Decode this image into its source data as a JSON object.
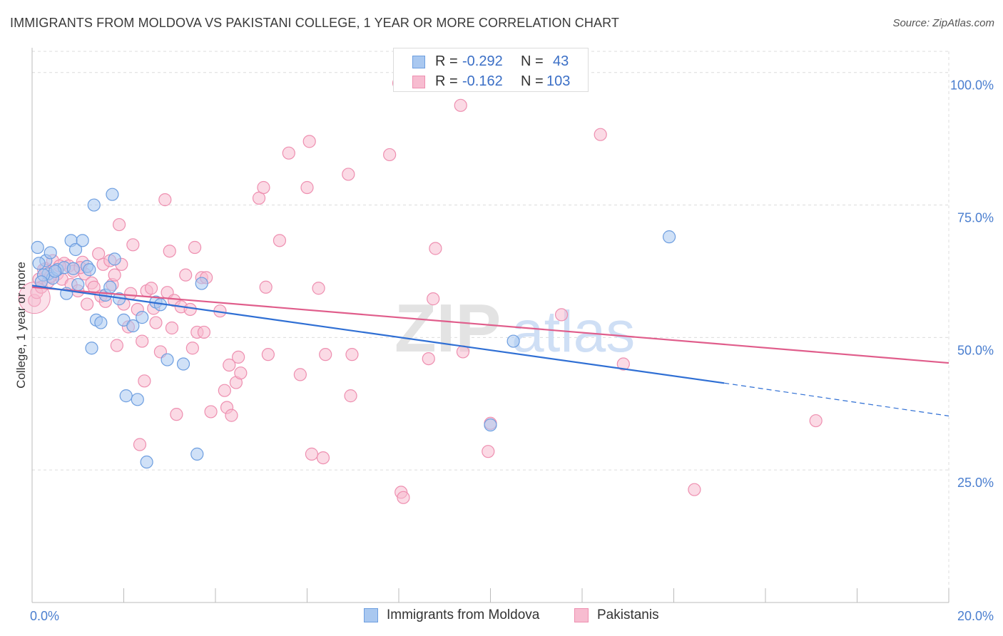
{
  "header": {
    "title": "IMMIGRANTS FROM MOLDOVA VS PAKISTANI COLLEGE, 1 YEAR OR MORE CORRELATION CHART",
    "source": "Source: ZipAtlas.com"
  },
  "legend": {
    "r_label": "R =",
    "n_label": "N =",
    "rows": [
      {
        "r": "-0.292",
        "n": "43"
      },
      {
        "r": "-0.162",
        "n": "103"
      }
    ]
  },
  "watermark": {
    "part1": "ZIP",
    "part2": "atlas"
  },
  "colors": {
    "moldova_fill": "#a9c8f0",
    "moldova_stroke": "#6d9ee0",
    "moldova_line": "#2f6fd4",
    "pakistani_fill": "#f7bcd0",
    "pakistani_stroke": "#ee8fb0",
    "pakistani_line": "#e05d8b",
    "tick_label": "#4a7ecf",
    "grid": "#dcdcdc"
  },
  "chart_data": {
    "type": "scatter",
    "xlabel": "",
    "ylabel": "College, 1 year or more",
    "xlim": [
      0,
      20
    ],
    "ylim": [
      0,
      104
    ],
    "x_ticks": [
      0,
      2,
      4,
      6,
      8,
      10,
      12,
      14,
      16,
      18,
      20
    ],
    "x_tick_labels": [
      {
        "x": 0,
        "label": "0.0%"
      },
      {
        "x": 20,
        "label": "20.0%"
      }
    ],
    "y_ticks": [
      {
        "y": 25,
        "label": "25.0%"
      },
      {
        "y": 50,
        "label": "50.0%"
      },
      {
        "y": 75,
        "label": "75.0%"
      },
      {
        "y": 100,
        "label": "100.0%"
      }
    ],
    "grid": true,
    "series": [
      {
        "name": "Immigrants from Moldova",
        "trend": {
          "x0": 0,
          "y0": 59.8,
          "x1": 15.1,
          "y1": 41.4,
          "dashed_to_x": 20,
          "dashed_to_y": 35.2
        },
        "points": [
          [
            0.12,
            67
          ],
          [
            0.3,
            64.5
          ],
          [
            0.35,
            62
          ],
          [
            0.4,
            66
          ],
          [
            0.45,
            61.2
          ],
          [
            0.25,
            61.8
          ],
          [
            0.55,
            62.8
          ],
          [
            0.7,
            63.2
          ],
          [
            0.75,
            58.3
          ],
          [
            0.85,
            68.3
          ],
          [
            0.95,
            66.6
          ],
          [
            1.0,
            60
          ],
          [
            1.1,
            68.3
          ],
          [
            1.2,
            63.4
          ],
          [
            1.25,
            62.8
          ],
          [
            1.35,
            75
          ],
          [
            1.4,
            53.3
          ],
          [
            1.5,
            52.8
          ],
          [
            1.6,
            58
          ],
          [
            1.7,
            59.5
          ],
          [
            1.75,
            77
          ],
          [
            1.8,
            64.8
          ],
          [
            1.9,
            57.3
          ],
          [
            2.0,
            53.3
          ],
          [
            2.05,
            39
          ],
          [
            2.2,
            52.2
          ],
          [
            2.3,
            38.3
          ],
          [
            2.4,
            53.8
          ],
          [
            2.5,
            26.5
          ],
          [
            2.7,
            56.7
          ],
          [
            2.8,
            56.2
          ],
          [
            2.95,
            45.8
          ],
          [
            3.3,
            45
          ],
          [
            3.6,
            28
          ],
          [
            3.7,
            60.2
          ],
          [
            1.3,
            48
          ],
          [
            10.0,
            33.5
          ],
          [
            10.5,
            49.3
          ],
          [
            13.9,
            69
          ],
          [
            0.2,
            60.5
          ],
          [
            0.5,
            62.5
          ],
          [
            0.9,
            63
          ],
          [
            0.15,
            64
          ]
        ]
      },
      {
        "name": "Pakistanis",
        "trend": {
          "x0": 0,
          "y0": 59.5,
          "x1": 20,
          "y1": 45.2
        },
        "points": [
          [
            0.05,
            57
          ],
          [
            0.1,
            58.5
          ],
          [
            0.15,
            61
          ],
          [
            0.2,
            59.5
          ],
          [
            0.3,
            63
          ],
          [
            0.35,
            60.5
          ],
          [
            0.45,
            64.5
          ],
          [
            0.55,
            62
          ],
          [
            0.65,
            61
          ],
          [
            0.7,
            64
          ],
          [
            0.8,
            63.5
          ],
          [
            0.85,
            60
          ],
          [
            0.9,
            62.5
          ],
          [
            1.0,
            58.8
          ],
          [
            1.1,
            64.2
          ],
          [
            1.15,
            62
          ],
          [
            1.2,
            56.3
          ],
          [
            1.3,
            60.3
          ],
          [
            1.35,
            59.5
          ],
          [
            1.45,
            65.8
          ],
          [
            1.5,
            57.8
          ],
          [
            1.55,
            63.8
          ],
          [
            1.6,
            56.8
          ],
          [
            1.7,
            64.5
          ],
          [
            1.75,
            60
          ],
          [
            1.8,
            61.8
          ],
          [
            1.85,
            48.5
          ],
          [
            1.9,
            71.3
          ],
          [
            1.95,
            63.8
          ],
          [
            2.0,
            56.3
          ],
          [
            2.1,
            52
          ],
          [
            2.15,
            58.3
          ],
          [
            2.2,
            67.5
          ],
          [
            2.3,
            55.3
          ],
          [
            2.35,
            29.8
          ],
          [
            2.4,
            49.3
          ],
          [
            2.45,
            41.8
          ],
          [
            2.5,
            58.8
          ],
          [
            2.6,
            59.3
          ],
          [
            2.65,
            55.5
          ],
          [
            2.7,
            52.8
          ],
          [
            2.8,
            47.3
          ],
          [
            2.9,
            76
          ],
          [
            2.95,
            58.5
          ],
          [
            3.0,
            66.3
          ],
          [
            3.05,
            51.8
          ],
          [
            3.1,
            57
          ],
          [
            3.15,
            35.5
          ],
          [
            3.25,
            55.8
          ],
          [
            3.35,
            61.8
          ],
          [
            3.45,
            55.3
          ],
          [
            3.5,
            48
          ],
          [
            3.55,
            67
          ],
          [
            3.6,
            51
          ],
          [
            3.7,
            61.3
          ],
          [
            3.75,
            51
          ],
          [
            3.8,
            61.3
          ],
          [
            3.9,
            36
          ],
          [
            4.1,
            55
          ],
          [
            4.2,
            40
          ],
          [
            4.25,
            36.8
          ],
          [
            4.3,
            44.8
          ],
          [
            4.35,
            35.3
          ],
          [
            4.45,
            41.5
          ],
          [
            4.5,
            46.3
          ],
          [
            4.55,
            43.3
          ],
          [
            4.95,
            76.3
          ],
          [
            5.05,
            78.3
          ],
          [
            5.1,
            59.5
          ],
          [
            5.15,
            46.8
          ],
          [
            5.4,
            68.3
          ],
          [
            5.6,
            84.8
          ],
          [
            5.85,
            43
          ],
          [
            6.0,
            78.3
          ],
          [
            6.05,
            87
          ],
          [
            6.1,
            28
          ],
          [
            6.25,
            59.3
          ],
          [
            6.35,
            27.3
          ],
          [
            6.4,
            46.8
          ],
          [
            6.9,
            80.8
          ],
          [
            6.95,
            39
          ],
          [
            6.98,
            46.8
          ],
          [
            7.8,
            84.5
          ],
          [
            8.0,
            98
          ],
          [
            8.05,
            20.8
          ],
          [
            8.1,
            19.8
          ],
          [
            8.65,
            46
          ],
          [
            8.75,
            57.3
          ],
          [
            8.8,
            66.8
          ],
          [
            9.35,
            93.8
          ],
          [
            9.4,
            47.3
          ],
          [
            9.95,
            28.5
          ],
          [
            10.0,
            33.8
          ],
          [
            11.45,
            97.8
          ],
          [
            11.55,
            54.3
          ],
          [
            12.4,
            88.3
          ],
          [
            12.9,
            45
          ],
          [
            14.45,
            21.3
          ],
          [
            17.1,
            34.3
          ],
          [
            0.25,
            62.8
          ],
          [
            0.6,
            63.5
          ],
          [
            1.05,
            63.2
          ],
          [
            0.4,
            61.5
          ]
        ]
      }
    ]
  }
}
